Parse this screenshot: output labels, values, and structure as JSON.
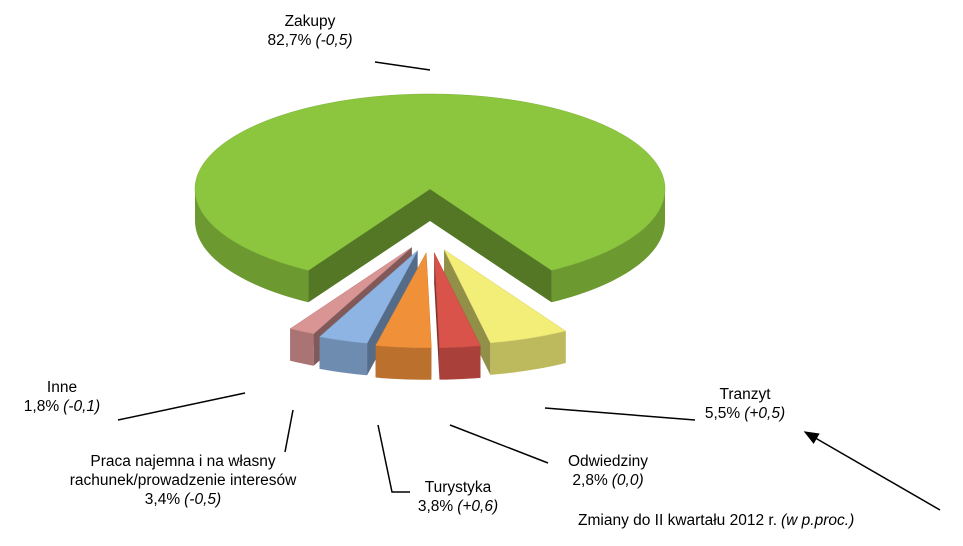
{
  "chart_data": {
    "type": "pie",
    "categories": [
      "Zakupy",
      "Tranzyt",
      "Odwiedziny",
      "Turystyka",
      "Praca najemna i na własny rachunek/prowadzenie interesów",
      "Inne"
    ],
    "values": [
      82.7,
      5.5,
      2.8,
      3.8,
      3.4,
      1.8
    ],
    "value_labels": [
      "82,7%",
      "5,5%",
      "2,8%",
      "3,8%",
      "3,4%",
      "1,8%"
    ],
    "changes": [
      "(-0,5)",
      "(+0,5)",
      "(0,0)",
      "(+0,6)",
      "(-0,5)",
      "(-0,1)"
    ],
    "colors": [
      "#8cc63e",
      "#f2ee78",
      "#d9534a",
      "#f0913a",
      "#8db4e2",
      "#d99594"
    ],
    "annotation": {
      "text": "Zmiany do II kwartału 2012 r.",
      "note": "(w p.proc.)"
    }
  }
}
